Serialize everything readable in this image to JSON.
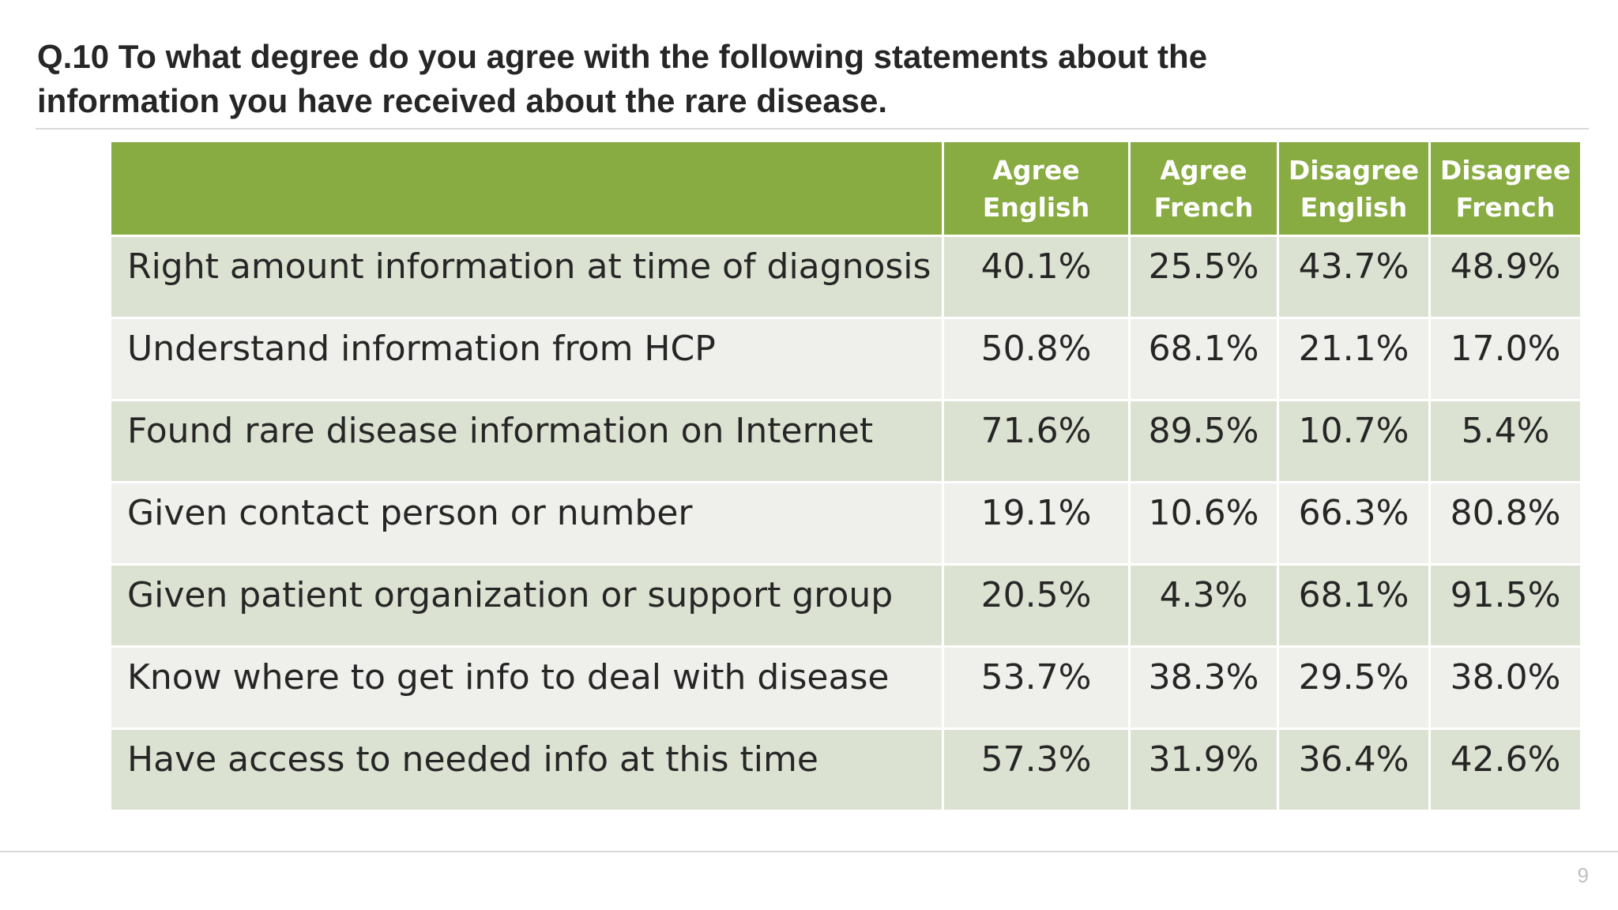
{
  "title": {
    "line1": "Q.10 To what degree do you agree with the following statements about the",
    "line2": "information you have received about the rare disease."
  },
  "page_number": "9",
  "chart_data": {
    "type": "table",
    "title": "Q.10 To what degree do you agree with the following statements about the information you have received about the rare disease.",
    "columns": [
      {
        "line1": "Agree",
        "line2": "English"
      },
      {
        "line1": "Agree",
        "line2": "French"
      },
      {
        "line1": "Disagree",
        "line2": "English"
      },
      {
        "line1": "Disagree",
        "line2": "French"
      }
    ],
    "rows": [
      {
        "label": "Right amount information at time of diagnosis",
        "values": [
          "40.1%",
          "25.5%",
          "43.7%",
          "48.9%"
        ]
      },
      {
        "label": "Understand information from HCP",
        "values": [
          "50.8%",
          "68.1%",
          "21.1%",
          "17.0%"
        ]
      },
      {
        "label": "Found rare disease information on Internet",
        "values": [
          "71.6%",
          "89.5%",
          "10.7%",
          "5.4%"
        ]
      },
      {
        "label": "Given contact person or number",
        "values": [
          "19.1%",
          "10.6%",
          "66.3%",
          "80.8%"
        ]
      },
      {
        "label": "Given patient organization or support group",
        "values": [
          "20.5%",
          "4.3%",
          "68.1%",
          "91.5%"
        ]
      },
      {
        "label": "Know where to get info to deal with disease",
        "values": [
          "53.7%",
          "38.3%",
          "29.5%",
          "38.0%"
        ]
      },
      {
        "label": "Have access to needed info at this time",
        "values": [
          "57.3%",
          "31.9%",
          "36.4%",
          "42.6%"
        ]
      }
    ]
  },
  "colors": {
    "header_bg": "#88ab42",
    "row_odd_bg": "#dce2d2",
    "row_even_bg": "#eff0eb"
  }
}
